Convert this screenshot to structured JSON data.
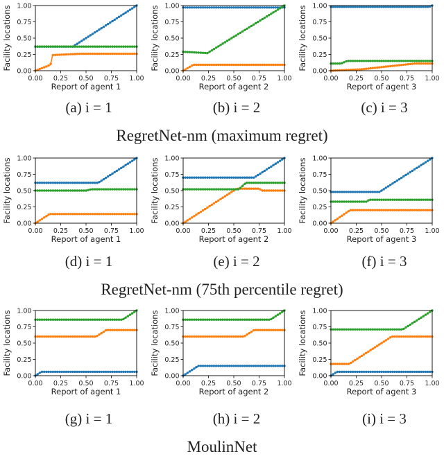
{
  "series_colors": [
    "#1f77b4",
    "#ff7f0e",
    "#2ca02c"
  ],
  "row_titles": [
    "RegretNet-nm (maximum regret)",
    "RegretNet-nm (75th percentile regret)",
    "MoulinNet"
  ],
  "chart_data": [
    {
      "type": "line",
      "caption": "(a) i = 1",
      "xlabel": "Report of agent 1",
      "ylabel": "Facility locations",
      "xlim": [
        0,
        1
      ],
      "ylim": [
        0,
        1
      ],
      "grid": false,
      "xticks": [
        "0.00",
        "0.25",
        "0.50",
        "0.75",
        "1.00"
      ],
      "yticks": [
        "0.00",
        "0.25",
        "0.50",
        "0.75",
        "1.00"
      ],
      "series": [
        {
          "color": "#1f77b4",
          "points": [
            [
              0,
              0.37
            ],
            [
              0.37,
              0.37
            ],
            [
              1.0,
              1.0
            ]
          ]
        },
        {
          "color": "#ff7f0e",
          "points": [
            [
              0,
              0.0
            ],
            [
              0.15,
              0.09
            ],
            [
              0.17,
              0.24
            ],
            [
              0.45,
              0.26
            ],
            [
              1.0,
              0.26
            ]
          ]
        },
        {
          "color": "#2ca02c",
          "points": [
            [
              0,
              0.37
            ],
            [
              1.0,
              0.37
            ]
          ]
        }
      ]
    },
    {
      "type": "line",
      "caption": "(b) i = 2",
      "xlabel": "Report of agent 2",
      "ylabel": "Facility locations",
      "xlim": [
        0,
        1
      ],
      "ylim": [
        0,
        1
      ],
      "grid": false,
      "xticks": [
        "0.00",
        "0.25",
        "0.50",
        "0.75",
        "1.00"
      ],
      "yticks": [
        "0.00",
        "0.25",
        "0.50",
        "0.75",
        "1.00"
      ],
      "series": [
        {
          "color": "#1f77b4",
          "points": [
            [
              0,
              0.97
            ],
            [
              1.0,
              0.97
            ]
          ]
        },
        {
          "color": "#ff7f0e",
          "points": [
            [
              0,
              0.0
            ],
            [
              0.1,
              0.09
            ],
            [
              1.0,
              0.09
            ]
          ]
        },
        {
          "color": "#2ca02c",
          "points": [
            [
              0,
              0.29
            ],
            [
              0.24,
              0.27
            ],
            [
              1.0,
              1.0
            ]
          ]
        }
      ]
    },
    {
      "type": "line",
      "caption": "(c) i = 3",
      "xlabel": "Report of agent 3",
      "ylabel": "Facility locations",
      "xlim": [
        0,
        1
      ],
      "ylim": [
        0,
        1
      ],
      "grid": false,
      "xticks": [
        "0.00",
        "0.25",
        "0.50",
        "0.75",
        "1.00"
      ],
      "yticks": [
        "0.00",
        "0.25",
        "0.50",
        "0.75",
        "1.00"
      ],
      "series": [
        {
          "color": "#1f77b4",
          "points": [
            [
              0,
              0.98
            ],
            [
              0.97,
              0.98
            ],
            [
              1.0,
              1.0
            ]
          ]
        },
        {
          "color": "#ff7f0e",
          "points": [
            [
              0,
              0.0
            ],
            [
              0.29,
              0.02
            ],
            [
              0.83,
              0.11
            ],
            [
              1.0,
              0.11
            ]
          ]
        },
        {
          "color": "#2ca02c",
          "points": [
            [
              0,
              0.11
            ],
            [
              0.1,
              0.11
            ],
            [
              0.16,
              0.15
            ],
            [
              1.0,
              0.15
            ]
          ]
        }
      ]
    },
    {
      "type": "line",
      "caption": "(d) i = 1",
      "xlabel": "Report of agent 1",
      "ylabel": "Facility locations",
      "xlim": [
        0,
        1
      ],
      "ylim": [
        0,
        1
      ],
      "grid": false,
      "xticks": [
        "0.00",
        "0.25",
        "0.50",
        "0.75",
        "1.00"
      ],
      "yticks": [
        "0.00",
        "0.25",
        "0.50",
        "0.75",
        "1.00"
      ],
      "series": [
        {
          "color": "#1f77b4",
          "points": [
            [
              0,
              0.62
            ],
            [
              0.62,
              0.62
            ],
            [
              1.0,
              1.0
            ]
          ]
        },
        {
          "color": "#ff7f0e",
          "points": [
            [
              0,
              0.0
            ],
            [
              0.14,
              0.14
            ],
            [
              1.0,
              0.14
            ]
          ]
        },
        {
          "color": "#2ca02c",
          "points": [
            [
              0,
              0.5
            ],
            [
              0.5,
              0.5
            ],
            [
              0.55,
              0.52
            ],
            [
              1.0,
              0.52
            ]
          ]
        }
      ]
    },
    {
      "type": "line",
      "caption": "(e) i = 2",
      "xlabel": "Report of agent 2",
      "ylabel": "Facility locations",
      "xlim": [
        0,
        1
      ],
      "ylim": [
        0,
        1
      ],
      "grid": false,
      "xticks": [
        "0.00",
        "0.25",
        "0.50",
        "0.75",
        "1.00"
      ],
      "yticks": [
        "0.00",
        "0.25",
        "0.50",
        "0.75",
        "1.00"
      ],
      "series": [
        {
          "color": "#1f77b4",
          "points": [
            [
              0,
              0.7
            ],
            [
              0.7,
              0.7
            ],
            [
              1.0,
              1.0
            ]
          ]
        },
        {
          "color": "#ff7f0e",
          "points": [
            [
              0,
              0.0
            ],
            [
              0.53,
              0.53
            ],
            [
              0.75,
              0.53
            ],
            [
              0.78,
              0.5
            ],
            [
              1.0,
              0.5
            ]
          ]
        },
        {
          "color": "#2ca02c",
          "points": [
            [
              0,
              0.52
            ],
            [
              0.55,
              0.52
            ],
            [
              0.62,
              0.62
            ],
            [
              1.0,
              0.62
            ]
          ]
        }
      ]
    },
    {
      "type": "line",
      "caption": "(f) i = 3",
      "xlabel": "Report of agent 3",
      "ylabel": "Facility locations",
      "xlim": [
        0,
        1
      ],
      "ylim": [
        0,
        1
      ],
      "grid": false,
      "xticks": [
        "0.00",
        "0.25",
        "0.50",
        "0.75",
        "1.00"
      ],
      "yticks": [
        "0.00",
        "0.25",
        "0.50",
        "0.75",
        "1.00"
      ],
      "series": [
        {
          "color": "#1f77b4",
          "points": [
            [
              0,
              0.48
            ],
            [
              0.48,
              0.48
            ],
            [
              1.0,
              1.0
            ]
          ]
        },
        {
          "color": "#ff7f0e",
          "points": [
            [
              0,
              0.0
            ],
            [
              0.19,
              0.2
            ],
            [
              1.0,
              0.2
            ]
          ]
        },
        {
          "color": "#2ca02c",
          "points": [
            [
              0,
              0.33
            ],
            [
              0.35,
              0.33
            ],
            [
              0.38,
              0.36
            ],
            [
              1.0,
              0.36
            ]
          ]
        }
      ]
    },
    {
      "type": "line",
      "caption": "(g) i = 1",
      "xlabel": "Report of agent 1",
      "ylabel": "Facility locations",
      "xlim": [
        0,
        1
      ],
      "ylim": [
        0,
        1
      ],
      "grid": false,
      "xticks": [
        "0.00",
        "0.25",
        "0.50",
        "0.75",
        "1.00"
      ],
      "yticks": [
        "0.00",
        "0.25",
        "0.50",
        "0.75",
        "1.00"
      ],
      "series": [
        {
          "color": "#1f77b4",
          "points": [
            [
              0,
              0.0
            ],
            [
              0.06,
              0.06
            ],
            [
              1.0,
              0.06
            ]
          ]
        },
        {
          "color": "#ff7f0e",
          "points": [
            [
              0,
              0.6
            ],
            [
              0.6,
              0.6
            ],
            [
              0.7,
              0.7
            ],
            [
              1.0,
              0.7
            ]
          ]
        },
        {
          "color": "#2ca02c",
          "points": [
            [
              0,
              0.86
            ],
            [
              0.86,
              0.86
            ],
            [
              1.0,
              1.0
            ]
          ]
        }
      ]
    },
    {
      "type": "line",
      "caption": "(h) i = 2",
      "xlabel": "Report of agent 2",
      "ylabel": "Facility locations",
      "xlim": [
        0,
        1
      ],
      "ylim": [
        0,
        1
      ],
      "grid": false,
      "xticks": [
        "0.00",
        "0.25",
        "0.50",
        "0.75",
        "1.00"
      ],
      "yticks": [
        "0.00",
        "0.25",
        "0.50",
        "0.75",
        "1.00"
      ],
      "series": [
        {
          "color": "#1f77b4",
          "points": [
            [
              0,
              0.0
            ],
            [
              0.15,
              0.15
            ],
            [
              1.0,
              0.15
            ]
          ]
        },
        {
          "color": "#ff7f0e",
          "points": [
            [
              0,
              0.6
            ],
            [
              0.6,
              0.6
            ],
            [
              0.7,
              0.7
            ],
            [
              1.0,
              0.7
            ]
          ]
        },
        {
          "color": "#2ca02c",
          "points": [
            [
              0,
              0.86
            ],
            [
              0.86,
              0.86
            ],
            [
              1.0,
              1.0
            ]
          ]
        }
      ]
    },
    {
      "type": "line",
      "caption": "(i) i = 3",
      "xlabel": "Report of agent 3",
      "ylabel": "Facility locations",
      "xlim": [
        0,
        1
      ],
      "ylim": [
        0,
        1
      ],
      "grid": false,
      "xticks": [
        "0.00",
        "0.25",
        "0.50",
        "0.75",
        "1.00"
      ],
      "yticks": [
        "0.00",
        "0.25",
        "0.50",
        "0.75",
        "1.00"
      ],
      "series": [
        {
          "color": "#1f77b4",
          "points": [
            [
              0,
              0.0
            ],
            [
              0.06,
              0.06
            ],
            [
              1.0,
              0.06
            ]
          ]
        },
        {
          "color": "#ff7f0e",
          "points": [
            [
              0,
              0.18
            ],
            [
              0.18,
              0.18
            ],
            [
              0.6,
              0.6
            ],
            [
              1.0,
              0.6
            ]
          ]
        },
        {
          "color": "#2ca02c",
          "points": [
            [
              0,
              0.71
            ],
            [
              0.71,
              0.71
            ],
            [
              1.0,
              1.0
            ]
          ]
        }
      ]
    }
  ]
}
